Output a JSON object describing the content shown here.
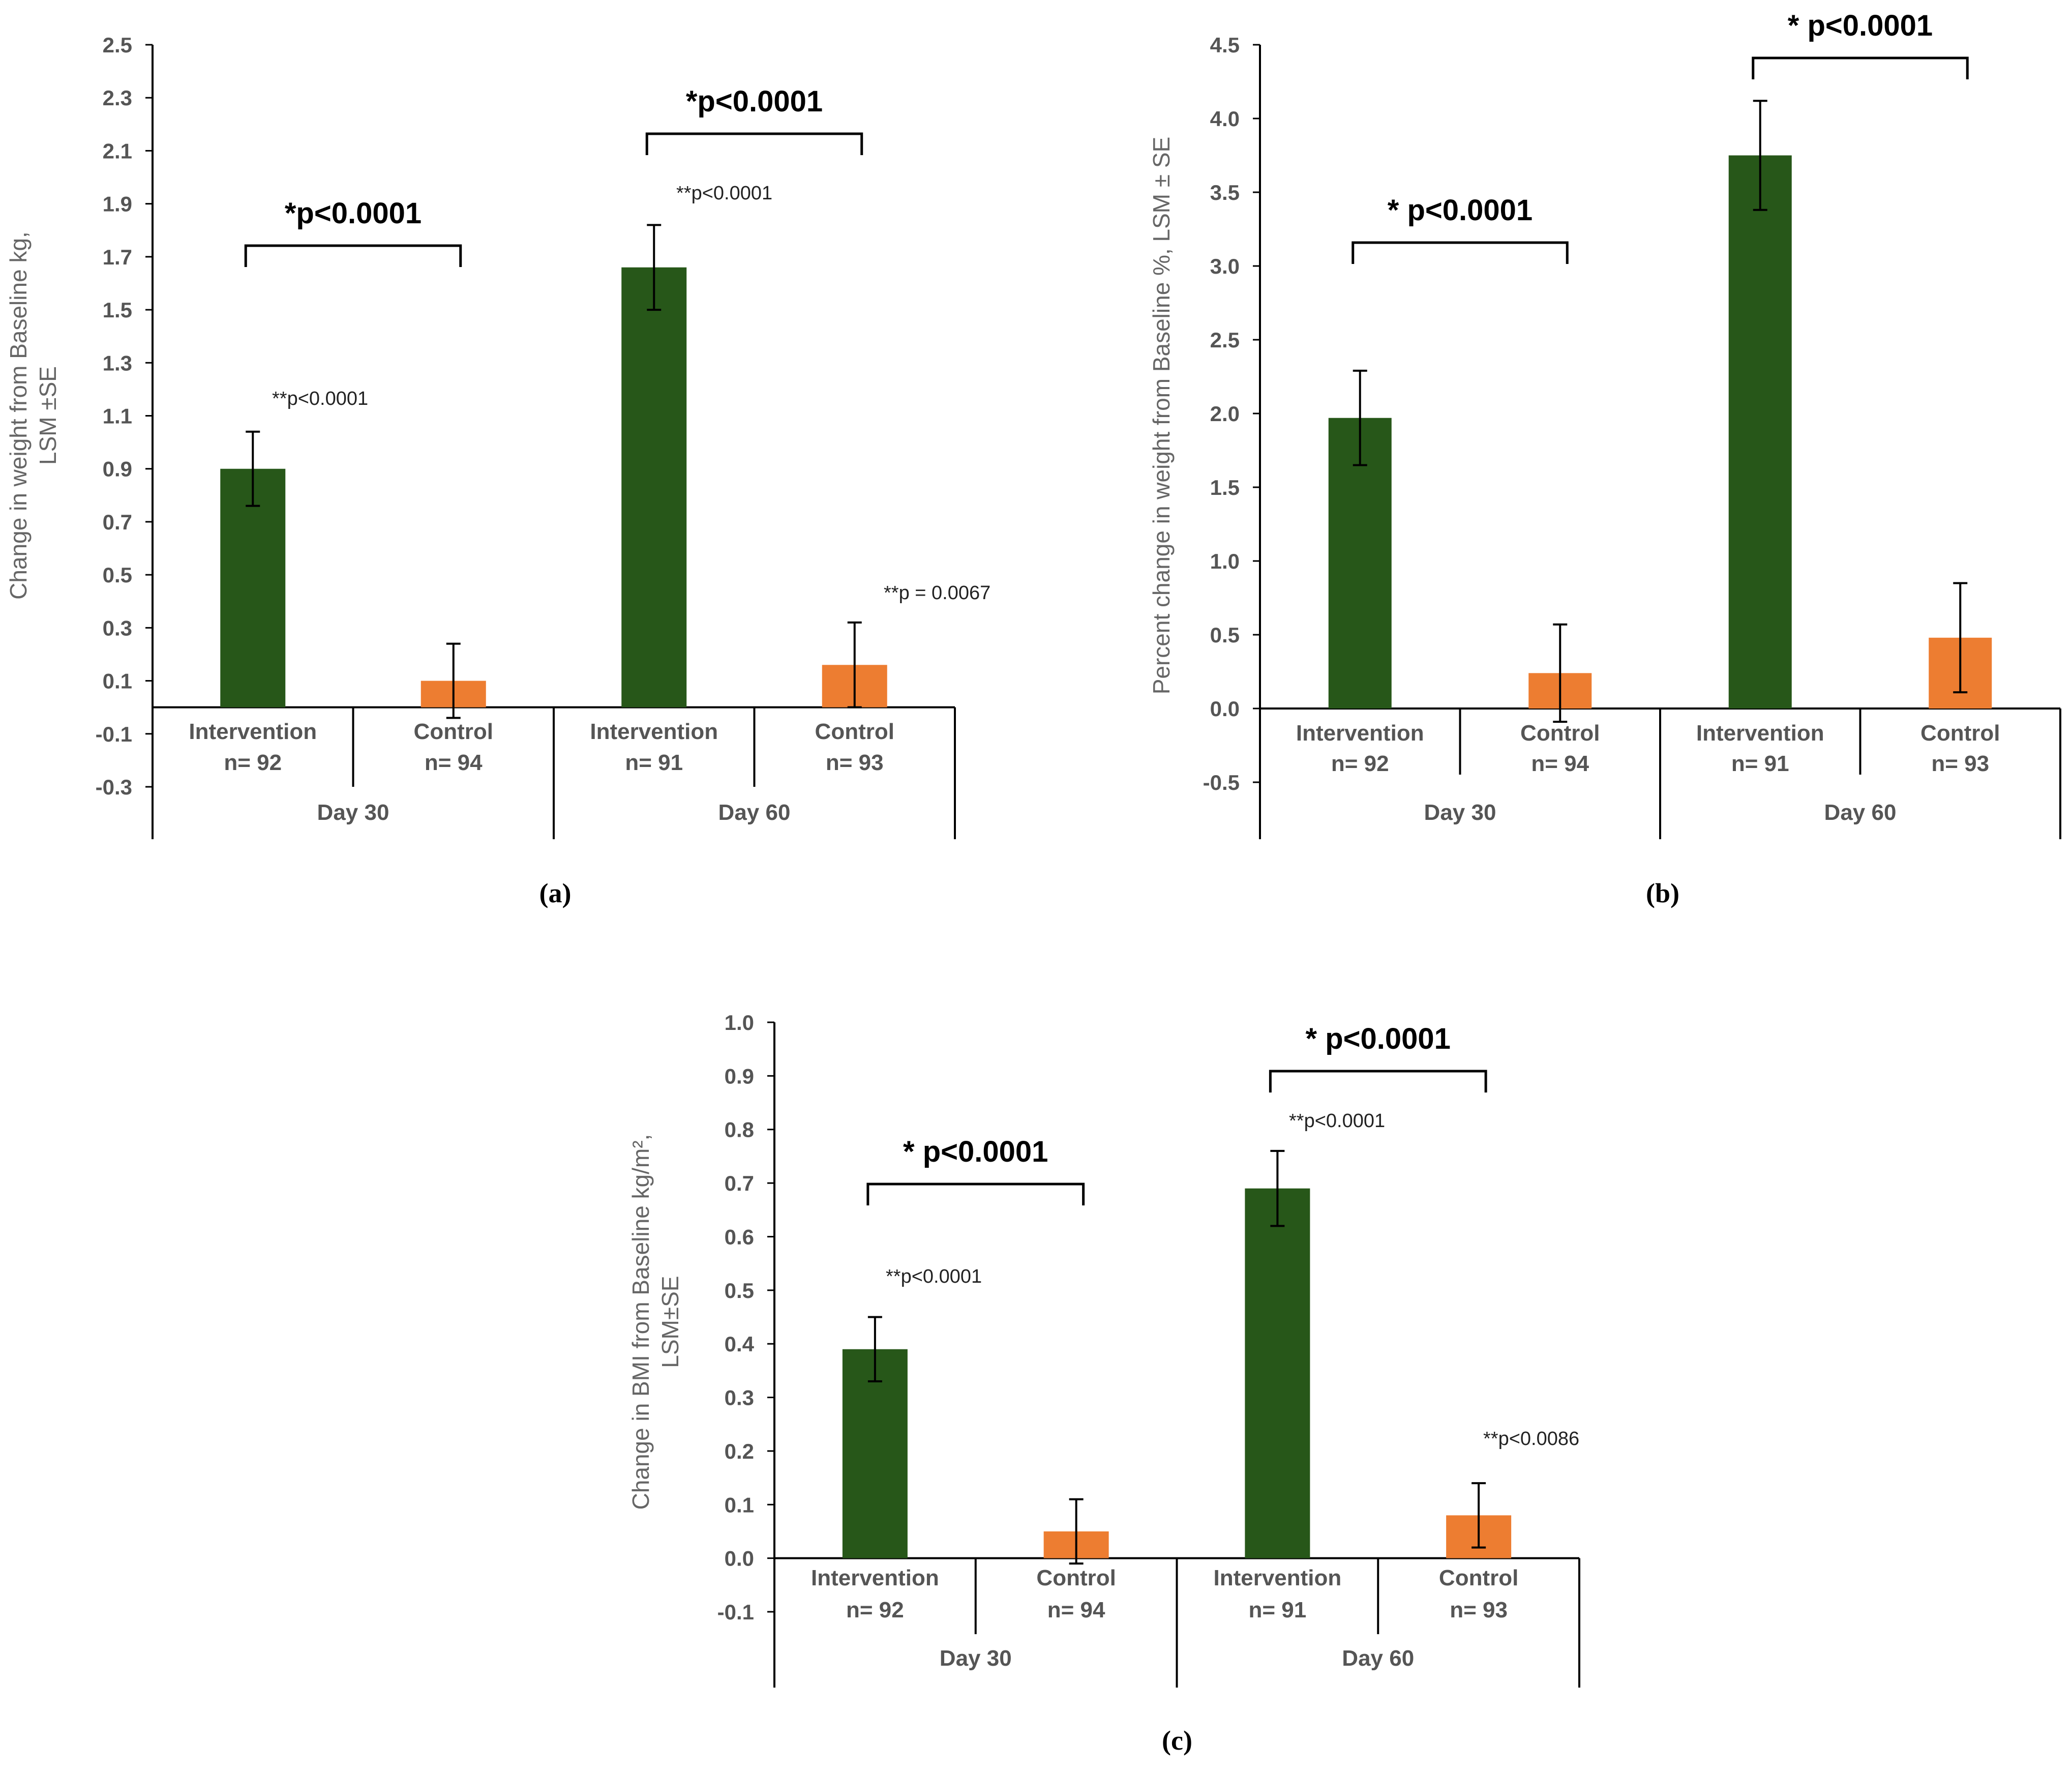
{
  "colors": {
    "intervention": "#275719",
    "control": "#ED7D31",
    "axis": "#000000"
  },
  "chart_data": [
    {
      "panel": "(a)",
      "type": "bar",
      "ylabel_lines": [
        "Change in weight from Baseline kg,",
        "LSM ±SE"
      ],
      "ylim": [
        -0.3,
        2.5
      ],
      "yticks": [
        "-0.3",
        "-0.1",
        "0.1",
        "0.3",
        "0.5",
        "0.7",
        "0.9",
        "1.1",
        "1.3",
        "1.5",
        "1.7",
        "1.9",
        "2.1",
        "2.3",
        "2.5"
      ],
      "groups": [
        {
          "label": "Day 30",
          "bracket_text": "*p<0.0001",
          "bars": [
            {
              "cat": "Intervention",
              "n": "n= 92",
              "series": "intervention",
              "value": 0.9,
              "err": 0.14,
              "annot": "**p<0.0001"
            },
            {
              "cat": "Control",
              "n": "n= 94",
              "series": "control",
              "value": 0.1,
              "err": 0.14,
              "annot": ""
            }
          ]
        },
        {
          "label": "Day 60",
          "bracket_text": "*p<0.0001",
          "bars": [
            {
              "cat": "Intervention",
              "n": "n= 91",
              "series": "intervention",
              "value": 1.66,
              "err": 0.16,
              "annot": "**p<0.0001"
            },
            {
              "cat": "Control",
              "n": "n= 93",
              "series": "control",
              "value": 0.16,
              "err": 0.16,
              "annot": "**p = 0.0067"
            }
          ]
        }
      ]
    },
    {
      "panel": "(b)",
      "type": "bar",
      "ylabel_lines": [
        "Percent change in weight from Baseline %, LSM ± SE"
      ],
      "ylim": [
        -0.5,
        4.5
      ],
      "yticks": [
        "-0.5",
        "0.0",
        "0.5",
        "1.0",
        "1.5",
        "2.0",
        "2.5",
        "3.0",
        "3.5",
        "4.0",
        "4.5"
      ],
      "groups": [
        {
          "label": "Day 30",
          "bracket_text": "* p<0.0001",
          "bars": [
            {
              "cat": "Intervention",
              "n": "n= 92",
              "series": "intervention",
              "value": 1.97,
              "err": 0.32,
              "annot": ""
            },
            {
              "cat": "Control",
              "n": "n= 94",
              "series": "control",
              "value": 0.24,
              "err": 0.33,
              "annot": ""
            }
          ]
        },
        {
          "label": "Day 60",
          "bracket_text": "* p<0.0001",
          "bars": [
            {
              "cat": "Intervention",
              "n": "n= 91",
              "series": "intervention",
              "value": 3.75,
              "err": 0.37,
              "annot": ""
            },
            {
              "cat": "Control",
              "n": "n= 93",
              "series": "control",
              "value": 0.48,
              "err": 0.37,
              "annot": ""
            }
          ]
        }
      ]
    },
    {
      "panel": "(c)",
      "type": "bar",
      "ylabel_lines": [
        "Change in BMI from Baseline kg/m²,",
        "LSM±SE"
      ],
      "ylim": [
        -0.1,
        1.0
      ],
      "yticks": [
        "-0.1",
        "0.0",
        "0.1",
        "0.2",
        "0.3",
        "0.4",
        "0.5",
        "0.6",
        "0.7",
        "0.8",
        "0.9",
        "1.0"
      ],
      "groups": [
        {
          "label": "Day 30",
          "bracket_text": "* p<0.0001",
          "bars": [
            {
              "cat": "Intervention",
              "n": "n= 92",
              "series": "intervention",
              "value": 0.39,
              "err": 0.06,
              "annot": "**p<0.0001"
            },
            {
              "cat": "Control",
              "n": "n= 94",
              "series": "control",
              "value": 0.05,
              "err": 0.06,
              "annot": ""
            }
          ]
        },
        {
          "label": "Day 60",
          "bracket_text": "* p<0.0001",
          "bars": [
            {
              "cat": "Intervention",
              "n": "n= 91",
              "series": "intervention",
              "value": 0.69,
              "err": 0.07,
              "annot": "**p<0.0001"
            },
            {
              "cat": "Control",
              "n": "n= 93",
              "series": "control",
              "value": 0.08,
              "err": 0.06,
              "annot": "**p<0.0086"
            }
          ]
        }
      ]
    }
  ]
}
